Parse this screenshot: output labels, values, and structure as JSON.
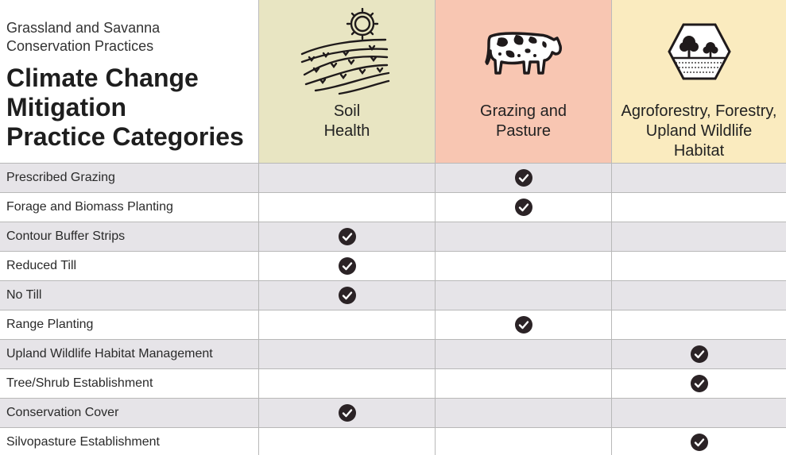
{
  "header": {
    "subtitle_line1": "Grassland and Savanna",
    "subtitle_line2": "Conservation Practices",
    "title_line1": "Climate Change",
    "title_line2": "Mitigation",
    "title_line3": "Practice Categories"
  },
  "colors": {
    "soil_health": "#e8e5c2",
    "grazing_pasture": "#f8c6b2",
    "agroforestry": "#faebbf",
    "row_shade": "#e6e4e8",
    "check": "#2b2326"
  },
  "columns": [
    {
      "label": "Soil\nHealth",
      "icon": "field-sun-icon"
    },
    {
      "label": "Grazing and\nPasture",
      "icon": "cow-icon"
    },
    {
      "label": "Agroforestry, Forestry,\nUpland Wildlife\nHabitat",
      "icon": "trees-hexagon-icon"
    }
  ],
  "rows": [
    {
      "name": "Prescribed Grazing",
      "checks": [
        false,
        true,
        false
      ]
    },
    {
      "name": "Forage and Biomass Planting",
      "checks": [
        false,
        true,
        false
      ]
    },
    {
      "name": "Contour Buffer Strips",
      "checks": [
        true,
        false,
        false
      ]
    },
    {
      "name": "Reduced Till",
      "checks": [
        true,
        false,
        false
      ]
    },
    {
      "name": "No Till",
      "checks": [
        true,
        false,
        false
      ]
    },
    {
      "name": "Range Planting",
      "checks": [
        false,
        true,
        false
      ]
    },
    {
      "name": "Upland Wildlife Habitat Management",
      "checks": [
        false,
        false,
        true
      ]
    },
    {
      "name": "Tree/Shrub Establishment",
      "checks": [
        false,
        false,
        true
      ]
    },
    {
      "name": "Conservation Cover",
      "checks": [
        true,
        false,
        false
      ]
    },
    {
      "name": "Silvopasture Establishment",
      "checks": [
        false,
        false,
        true
      ]
    }
  ]
}
